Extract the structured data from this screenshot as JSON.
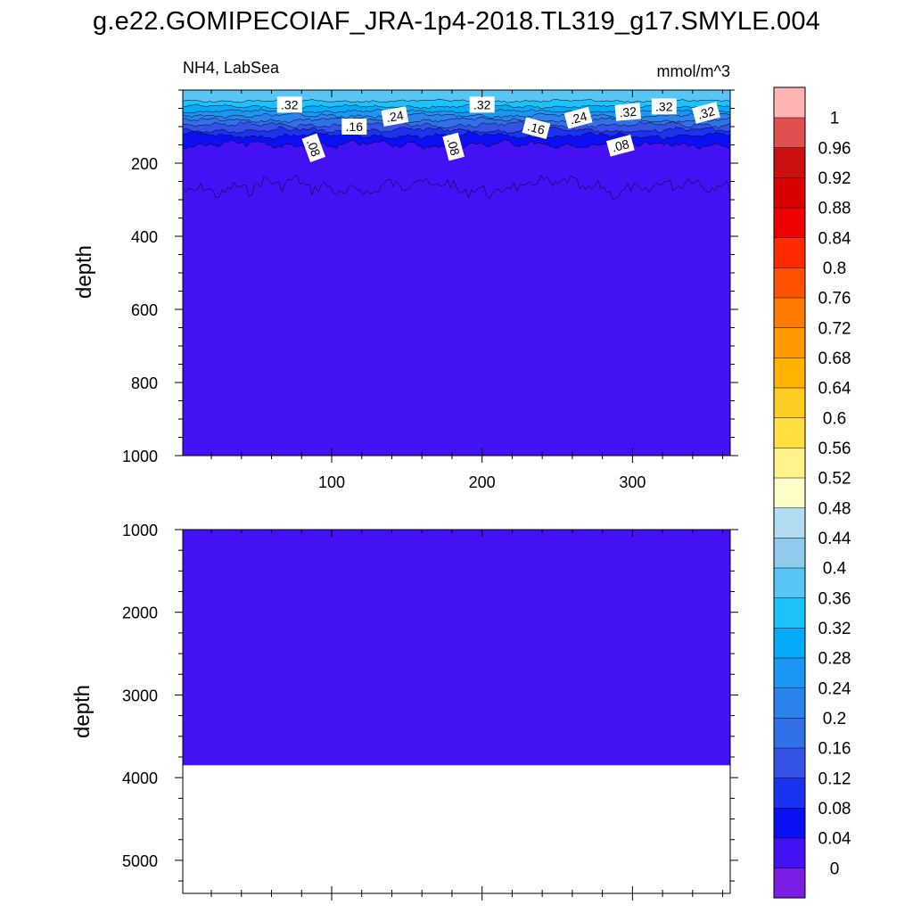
{
  "title": "g.e22.GOMIPECOIAF_JRA-1p4-2018.TL319_g17.SMYLE.004",
  "chart_data": {
    "type": "contour",
    "left_label": "NH4, LabSea",
    "right_label": "mmol/m^3",
    "ylabel": "depth",
    "x_range": [
      1,
      365
    ],
    "x_ticks": [
      "100",
      "200",
      "300"
    ],
    "x_tick_values": [
      100,
      200,
      300
    ],
    "top_panel": {
      "ylim": [
        0,
        1000
      ],
      "y_ticks": [
        "200",
        "400",
        "600",
        "800",
        "1000"
      ],
      "y_tick_values": [
        200,
        400,
        600,
        800,
        1000
      ]
    },
    "bottom_panel": {
      "ylim": [
        1000,
        5400
      ],
      "y_ticks": [
        "1000",
        "2000",
        "3000",
        "4000",
        "5000"
      ],
      "y_tick_values": [
        1000,
        2000,
        3000,
        4000,
        5000
      ],
      "seafloor_depth": 3850
    },
    "contour_labels": [
      {
        "text": ".32",
        "day": 72,
        "depth": 40,
        "rotation": 0
      },
      {
        "text": ".32",
        "day": 200,
        "depth": 40,
        "rotation": 0
      },
      {
        "text": ".32",
        "day": 297,
        "depth": 60,
        "rotation": -5
      },
      {
        "text": ".32",
        "day": 321,
        "depth": 45,
        "rotation": 0
      },
      {
        "text": ".32",
        "day": 349,
        "depth": 62,
        "rotation": -15
      },
      {
        "text": ".24",
        "day": 142,
        "depth": 72,
        "rotation": -10
      },
      {
        "text": ".24",
        "day": 264,
        "depth": 76,
        "rotation": -15
      },
      {
        "text": ".16",
        "day": 115,
        "depth": 100,
        "rotation": 0
      },
      {
        "text": ".16",
        "day": 236,
        "depth": 104,
        "rotation": 15
      },
      {
        "text": ".08",
        "day": 88,
        "depth": 158,
        "rotation": 70
      },
      {
        "text": ".08",
        "day": 181,
        "depth": 155,
        "rotation": 75
      },
      {
        "text": ".08",
        "day": 292,
        "depth": 152,
        "rotation": -15
      }
    ],
    "colorbar": {
      "levels": [
        "0",
        "0.04",
        "0.08",
        "0.12",
        "0.16",
        "0.2",
        "0.24",
        "0.28",
        "0.32",
        "0.36",
        "0.4",
        "0.44",
        "0.48",
        "0.52",
        "0.56",
        "0.6",
        "0.64",
        "0.68",
        "0.72",
        "0.76",
        "0.8",
        "0.84",
        "0.88",
        "0.92",
        "0.96",
        "1"
      ],
      "colors": [
        "#7a1ee6",
        "#4410f4",
        "#0b10f4",
        "#1a33f0",
        "#3453e6",
        "#3070e8",
        "#2c82ec",
        "#1a96f5",
        "#05abf8",
        "#1ec2fa",
        "#57c6f5",
        "#90caec",
        "#b1dcf2",
        "#fdfdc8",
        "#fff38a",
        "#ffe040",
        "#ffcc22",
        "#ffb300",
        "#ff9900",
        "#ff7a00",
        "#ff5200",
        "#ff2a00",
        "#f00000",
        "#d80000",
        "#cc1010",
        "#e05050",
        "#ffb3b3"
      ]
    }
  }
}
